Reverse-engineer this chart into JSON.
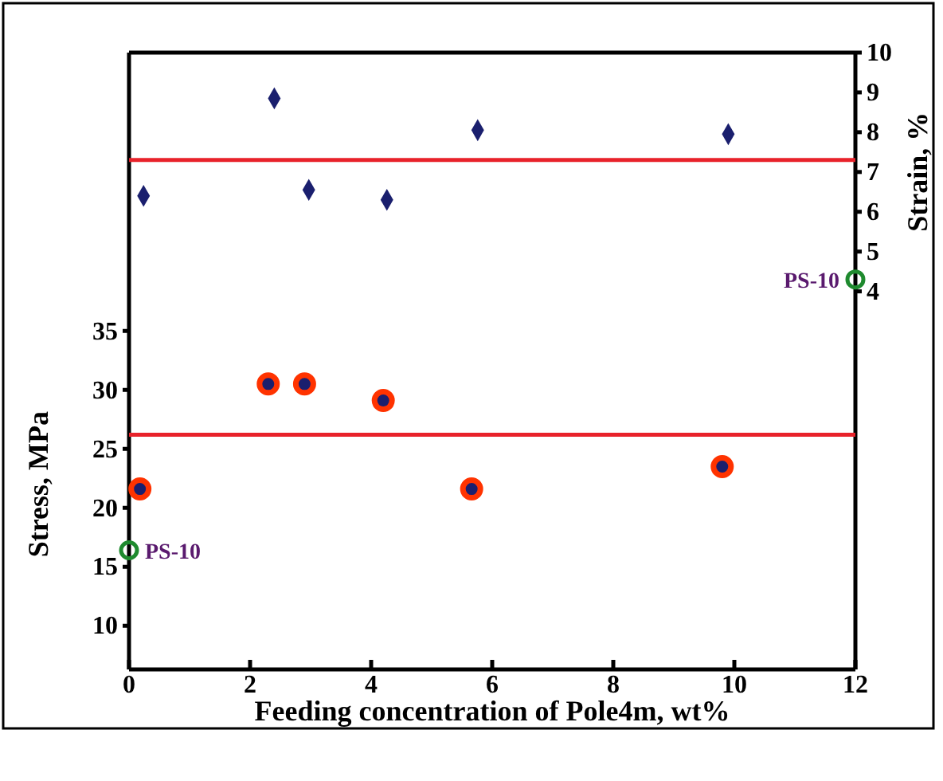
{
  "chart_data": {
    "type": "scatter",
    "xlabel": "Feeding concentration of Pole4m, wt%",
    "ylabel": "Stress, MPa",
    "y2label": "Strain, %",
    "xlim": [
      0,
      12
    ],
    "xticks": [
      0,
      2,
      4,
      6,
      8,
      10,
      12
    ],
    "ylim": [
      6.3,
      58.6
    ],
    "yticks": [
      10,
      15,
      20,
      25,
      30,
      35
    ],
    "y2lim": [
      -5.5,
      10
    ],
    "y2ticks": [
      4,
      5,
      6,
      7,
      8,
      9,
      10
    ],
    "series": [
      {
        "color": "#1a1f6e",
        "marker": "diamond",
        "axis": "y2",
        "x": [
          0.24,
          2.4,
          2.97,
          4.26,
          5.76,
          9.9
        ],
        "values": [
          6.4,
          8.85,
          6.55,
          6.3,
          8.05,
          7.95
        ]
      },
      {
        "color": "#ff3300",
        "marker": "circle",
        "x": [
          0.18,
          2.3,
          2.9,
          4.2,
          5.66,
          9.8
        ],
        "values": [
          21.6,
          30.5,
          30.5,
          29.1,
          21.6,
          23.5
        ]
      },
      {
        "name": "PS-10",
        "color": "#1e8a2e",
        "marker": "circle",
        "x": [
          0
        ],
        "values": [
          16.4
        ]
      },
      {
        "name": "PS-10",
        "color": "#1e8a2e",
        "marker": "circle",
        "axis": "y2",
        "x": [
          12
        ],
        "values": [
          4.3
        ]
      }
    ],
    "ref_lines": [
      {
        "axis": "y",
        "value": 26.2,
        "color": "#e8222a"
      },
      {
        "axis": "y2",
        "value": 7.3,
        "color": "#e8222a"
      }
    ],
    "grid": false
  }
}
